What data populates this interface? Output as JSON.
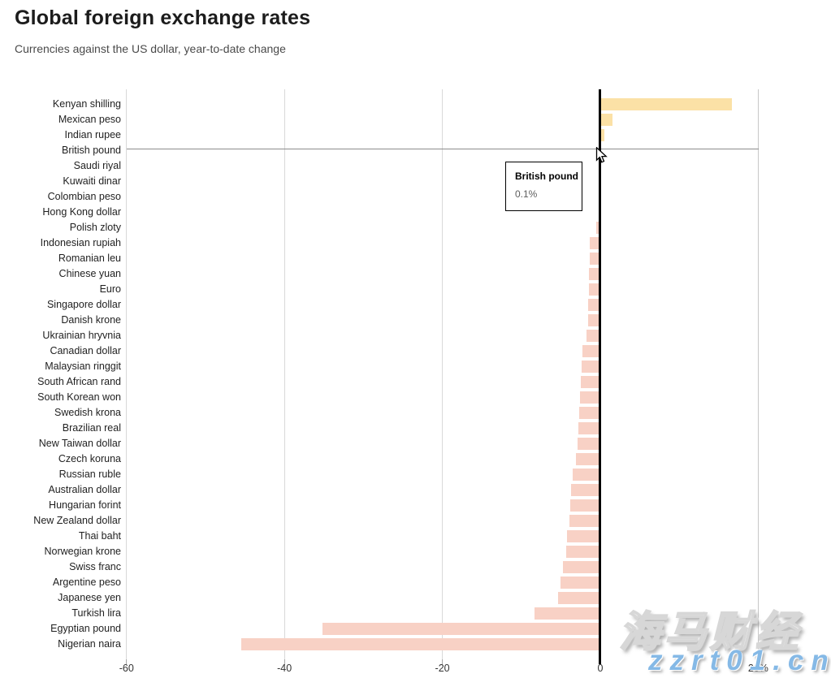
{
  "header": {
    "title": "Global foreign exchange rates",
    "subtitle": "Currencies against the US dollar, year-to-date change"
  },
  "chart_data": {
    "type": "bar",
    "orientation": "horizontal",
    "title": "Global foreign exchange rates",
    "subtitle": "Currencies against the US dollar, year-to-date change",
    "unit": "%",
    "xlim": [
      -60,
      20
    ],
    "x_tick_labels": [
      "-60",
      "-40",
      "-20",
      "0",
      "20%"
    ],
    "x_tick_values": [
      -60,
      -40,
      -20,
      0,
      20
    ],
    "gridline_values": [
      -60,
      -40,
      -20,
      20
    ],
    "grid": "vertical",
    "legend": "none",
    "positive_color": "#fbe1a6",
    "negative_color": "#f8d1c5",
    "hovered_category": "British pound",
    "categories": [
      "Kenyan shilling",
      "Mexican peso",
      "Indian rupee",
      "British pound",
      "Saudi riyal",
      "Kuwaiti dinar",
      "Colombian peso",
      "Hong Kong dollar",
      "Polish zloty",
      "Indonesian rupiah",
      "Romanian leu",
      "Chinese yuan",
      "Euro",
      "Singapore dollar",
      "Danish krone",
      "Ukrainian hryvnia",
      "Canadian dollar",
      "Malaysian ringgit",
      "South African rand",
      "South Korean won",
      "Swedish krona",
      "Brazilian real",
      "New Taiwan dollar",
      "Czech koruna",
      "Russian ruble",
      "Australian dollar",
      "Hungarian forint",
      "New Zealand dollar",
      "Thai baht",
      "Norwegian krone",
      "Swiss franc",
      "Argentine peso",
      "Japanese yen",
      "Turkish lira",
      "Egyptian pound",
      "Nigerian naira"
    ],
    "values": [
      16.7,
      1.5,
      0.5,
      0.1,
      0.0,
      0.0,
      -0.1,
      -0.2,
      -0.5,
      -1.3,
      -1.3,
      -1.4,
      -1.4,
      -1.5,
      -1.5,
      -1.8,
      -2.3,
      -2.4,
      -2.5,
      -2.6,
      -2.7,
      -2.8,
      -2.9,
      -3.1,
      -3.5,
      -3.7,
      -3.8,
      -3.9,
      -4.2,
      -4.3,
      -4.7,
      -5.0,
      -5.3,
      -8.3,
      -35.2,
      -45.5
    ]
  },
  "tooltip": {
    "title": "British pound",
    "value": "0.1%"
  },
  "watermark": {
    "line1": "海马财经",
    "line2": "zzrt01.cn",
    "color": "#85b9e6"
  },
  "colors": {
    "title": "#1c1c1c",
    "subtitle": "#4a4a4a",
    "gridline": "#d9d9d9",
    "zero_line": "#000000",
    "positive_bar": "#fbe1a6",
    "negative_bar": "#f8d1c5"
  }
}
